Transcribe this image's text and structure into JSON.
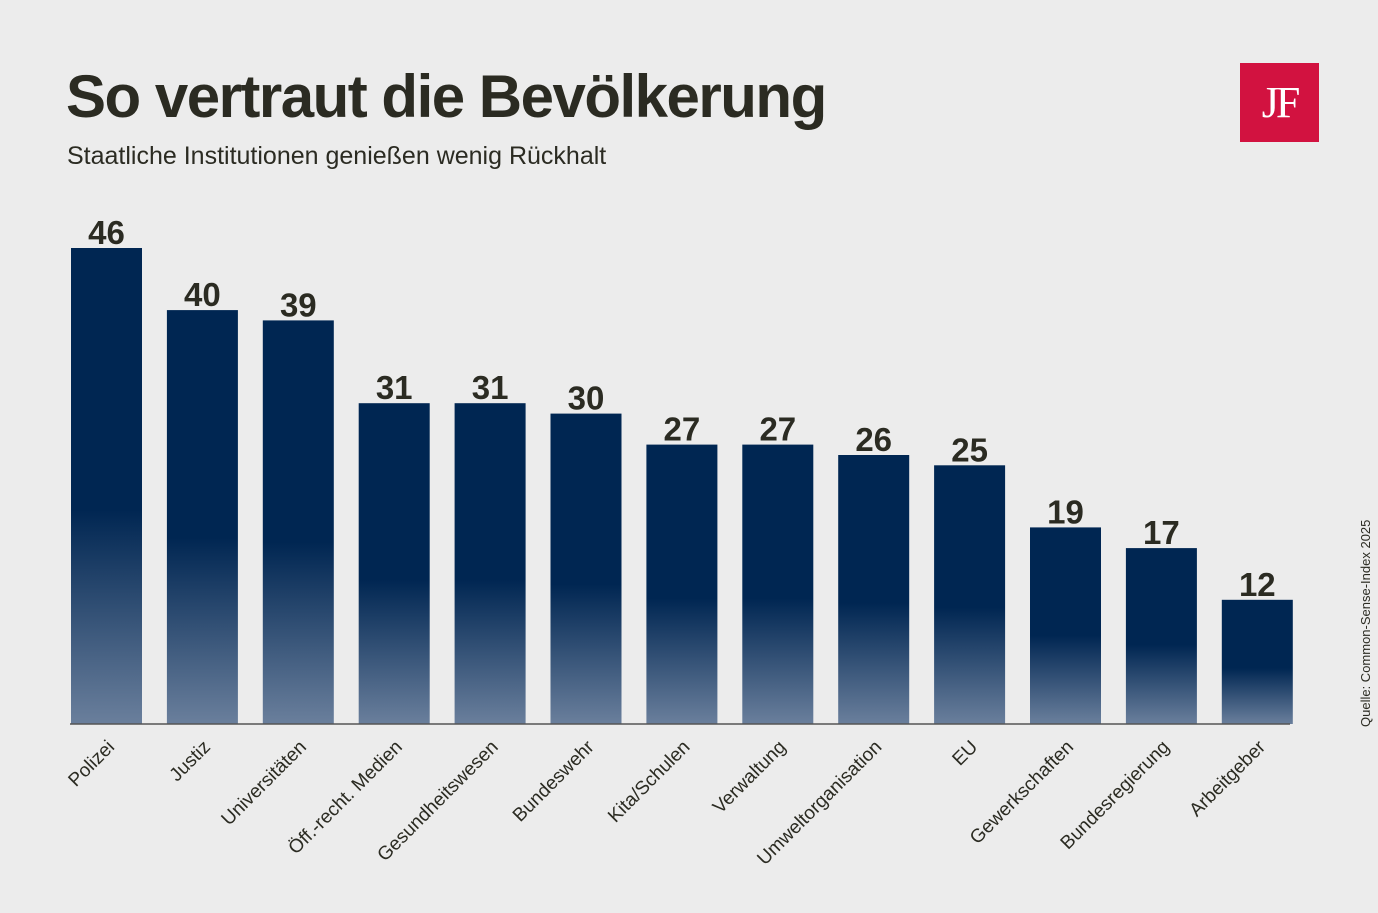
{
  "header": {
    "title": "So vertraut die Bevölkerung",
    "subtitle": "Staatliche Institutionen genießen wenig Rückhalt"
  },
  "logo": {
    "text": "JF",
    "color": "#d21240"
  },
  "source": "Quelle: Common-Sense-Index 2025",
  "colors": {
    "bar_top": "#002652",
    "bar_bottom": "#6a7f9c",
    "text": "#2b2b22",
    "axis": "#555555"
  },
  "chart_data": {
    "type": "bar",
    "categories": [
      "Polizei",
      "Justiz",
      "Universitäten",
      "Öff.-recht. Medien",
      "Gesundheitswesen",
      "Bundeswehr",
      "Kita/Schulen",
      "Verwaltung",
      "Umweltorganisation",
      "EU",
      "Gewerkschaften",
      "Bundesregierung",
      "Arbeitgeber"
    ],
    "values": [
      46,
      40,
      39,
      31,
      31,
      30,
      27,
      27,
      26,
      25,
      19,
      17,
      12
    ],
    "data_labels": [
      "46",
      "40",
      "39",
      "31",
      "31",
      "30",
      "27",
      "27",
      "26",
      "25",
      "19",
      "17",
      "12"
    ],
    "ylim": [
      0,
      46
    ],
    "grid": false,
    "legend": "none"
  }
}
